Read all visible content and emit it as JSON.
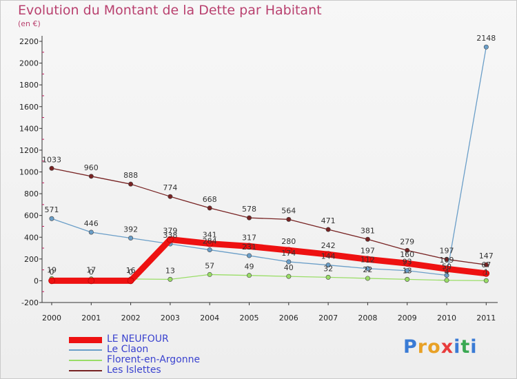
{
  "title": "Evolution du Montant de la Dette par Habitant",
  "subtitle": "(en €)",
  "brand": {
    "name": "Proxiti",
    "letters": [
      "P",
      "r",
      "o",
      "x",
      "i",
      "t",
      "i"
    ],
    "colors": [
      "#3a7bd5",
      "#e8a126",
      "#e8a126",
      "#e83c3c",
      "#3a7bd5",
      "#3aa852",
      "#3a7bd5"
    ]
  },
  "chart_data": {
    "type": "line",
    "title": "Evolution du Montant de la Dette par Habitant",
    "ylabel": "(en €)",
    "xlabel": "",
    "x": [
      "2000",
      "2001",
      "2002",
      "2003",
      "2004",
      "2005",
      "2006",
      "2007",
      "2008",
      "2009",
      "2010",
      "2011"
    ],
    "ylim": [
      -200,
      2200
    ],
    "yticks": [
      -200,
      0,
      200,
      400,
      600,
      800,
      1000,
      1200,
      1400,
      1600,
      1800,
      2000,
      2200
    ],
    "grid": false,
    "legend_position": "bottom-left",
    "series": [
      {
        "name": "LE NEUFOUR",
        "color": "#ee1111",
        "values": [
          0,
          0,
          0,
          379,
          341,
          317,
          280,
          242,
          197,
          160,
          109,
          67
        ]
      },
      {
        "name": "Le Claon",
        "color": "#6a9ec8",
        "values": [
          571,
          446,
          392,
          338,
          284,
          231,
          174,
          144,
          112,
          93,
          50,
          2148
        ]
      },
      {
        "name": "Florent-en-Argonne",
        "color": "#99dd66",
        "values": [
          19,
          17,
          16,
          13,
          57,
          49,
          40,
          32,
          22,
          13,
          4,
          1
        ]
      },
      {
        "name": "Les Islettes",
        "color": "#772222",
        "values": [
          1033,
          960,
          888,
          774,
          668,
          578,
          564,
          471,
          381,
          279,
          197,
          147
        ]
      }
    ]
  }
}
